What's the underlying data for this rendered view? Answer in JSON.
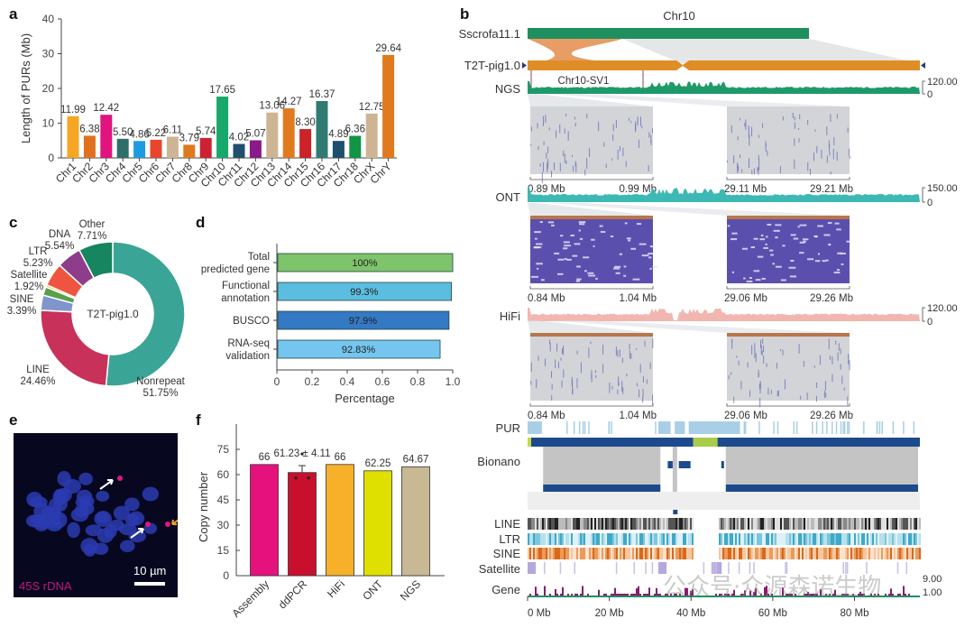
{
  "panels": {
    "a": "a",
    "b": "b",
    "c": "c",
    "d": "d",
    "e": "e",
    "f": "f"
  },
  "chart_data": [
    {
      "id": "a",
      "type": "bar",
      "title": "",
      "xlabel": "",
      "ylabel": "Length of PURs (Mb)",
      "ylim": [
        0,
        40
      ],
      "yticks": [
        0,
        10,
        20,
        30,
        40
      ],
      "categories": [
        "Chr1",
        "Chr2",
        "Chr3",
        "Chr4",
        "Chr5",
        "Chr6",
        "Chr7",
        "Chr8",
        "Chr9",
        "Chr10",
        "Chr11",
        "Chr12",
        "Chr13",
        "Chr14",
        "Chr15",
        "Chr16",
        "Chr17",
        "Chr18",
        "ChrX",
        "ChrY"
      ],
      "values": [
        11.99,
        6.38,
        12.42,
        5.5,
        4.86,
        5.22,
        6.11,
        3.79,
        5.74,
        17.65,
        4.02,
        5.07,
        13.06,
        14.27,
        8.3,
        16.37,
        4.89,
        6.36,
        12.75,
        29.64
      ],
      "labels": [
        "11.99",
        "6.38",
        "12.42",
        "5.50",
        "4.86",
        "5.22",
        "6.11",
        "3.79",
        "5.74",
        "17.65",
        "4.02",
        "5.07",
        "13.06",
        "14.27",
        "8.30",
        "16.37",
        "4.89",
        "6.36",
        "12.75",
        "29.64"
      ],
      "colors": [
        "#f5a623",
        "#e07020",
        "#e0137f",
        "#2f6f6a",
        "#1e9be0",
        "#e8452c",
        "#cdb594",
        "#dd7a1f",
        "#cc2233",
        "#18a86b",
        "#1f4e6e",
        "#8a1a8a",
        "#cdb594",
        "#e07a1f",
        "#cc2229",
        "#2f7b72",
        "#1f4e6e",
        "#129444",
        "#cdb594",
        "#e07a1f"
      ],
      "grid": false
    },
    {
      "id": "c",
      "type": "pie",
      "donut": true,
      "center_label": "T2T-pig1.0",
      "slices": [
        {
          "name": "Nonrepeat",
          "value": 51.75,
          "label": "51.75%",
          "color": "#3aa596"
        },
        {
          "name": "LINE",
          "value": 24.46,
          "label": "24.46%",
          "color": "#c8315a"
        },
        {
          "name": "SINE",
          "value": 3.39,
          "label": "3.39%",
          "color": "#7f95cc"
        },
        {
          "name": "Satellite",
          "value": 1.92,
          "label": "1.92%",
          "color": "#5aa04a"
        },
        {
          "name": "Satellite-b",
          "value": 0.5,
          "label": "",
          "color": "#f2c230"
        },
        {
          "name": "LTR",
          "value": 5.23,
          "label": "5.23%",
          "color": "#ef5440"
        },
        {
          "name": "DNA",
          "value": 5.54,
          "label": "5.54%",
          "color": "#8e3d8a"
        },
        {
          "name": "Other",
          "value": 7.71,
          "label": "7.71%",
          "color": "#17855f"
        }
      ]
    },
    {
      "id": "d",
      "type": "bar",
      "orientation": "horizontal",
      "xlabel": "Percentage",
      "ylabel": "",
      "xlim": [
        0,
        1.0
      ],
      "xticks": [
        "0",
        "0.2",
        "0.4",
        "0.6",
        "0.8",
        "1.0"
      ],
      "categories": [
        [
          "Total",
          "predicted gene"
        ],
        [
          "Functional",
          "annotation"
        ],
        [
          "BUSCO"
        ],
        [
          "RNA-seq",
          "validation"
        ]
      ],
      "values": [
        1.0,
        0.993,
        0.979,
        0.9283
      ],
      "labels": [
        "100%",
        "99.3%",
        "97.9%",
        "92.83%"
      ],
      "colors": [
        "#7ec46a",
        "#5bbde0",
        "#3479c4",
        "#74c6ef"
      ]
    },
    {
      "id": "f",
      "type": "bar",
      "xlabel": "",
      "ylabel": "Copy number",
      "ylim": [
        0,
        90
      ],
      "yticks": [
        0,
        15,
        30,
        45,
        60,
        75
      ],
      "categories": [
        "Assembly",
        "ddPCR",
        "HiFi",
        "ONT",
        "NGS"
      ],
      "values": [
        66,
        61.23,
        66,
        62.25,
        64.67
      ],
      "labels": [
        "66",
        "61.23 ± 4.11",
        "66",
        "62.25",
        "64.67"
      ],
      "error": [
        null,
        4.11,
        null,
        null,
        null
      ],
      "points": [
        null,
        [
          58,
          58,
          68
        ],
        null,
        null,
        null
      ],
      "colors": [
        "#e5127e",
        "#c8102e",
        "#f7b02a",
        "#dfe000",
        "#c8b894"
      ]
    },
    {
      "id": "b",
      "type": "table",
      "title": "Chr10",
      "assemblies": [
        "Sscrofa11.1",
        "T2T-pig1.0"
      ],
      "sv_label": "Chr10-SV1",
      "tracks": [
        {
          "name": "NGS",
          "range_max": "120.00",
          "range_min": "0",
          "color": "#1e9a6a"
        },
        {
          "name": "ONT",
          "range_max": "150.00",
          "range_min": "0",
          "color": "#3bb9b2"
        },
        {
          "name": "HiFi",
          "range_max": "120.00",
          "range_min": "0",
          "color": "#f2b6b0"
        }
      ],
      "zoom_windows": {
        "NGS": [
          [
            "0.89 Mb",
            "0.99 Mb"
          ],
          [
            "29.11 Mb",
            "29.21 Mb"
          ]
        ],
        "ONT": [
          [
            "0.84 Mb",
            "1.04 Mb"
          ],
          [
            "29.06 Mb",
            "29.26 Mb"
          ]
        ],
        "HiFi": [
          [
            "0.84 Mb",
            "1.04 Mb"
          ],
          [
            "29.06 Mb",
            "29.26 Mb"
          ]
        ]
      },
      "annotation_tracks": [
        "PUR",
        "Bionano",
        "LINE",
        "LTR",
        "SINE",
        "Satellite",
        "Gene"
      ],
      "gene_range": {
        "max": "9.00",
        "min": "1.00"
      },
      "xaxis_ticks": [
        "0 Mb",
        "20 Mb",
        "40 Mb",
        "60 Mb",
        "80 Mb"
      ],
      "xaxis_max_mb": 96
    }
  ],
  "panel_e": {
    "probe_label": "45S rDNA",
    "scale_bar": "10 µm"
  },
  "watermark": "公众号·众源森诺生物"
}
